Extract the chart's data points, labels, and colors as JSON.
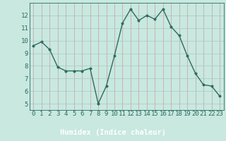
{
  "x": [
    0,
    1,
    2,
    3,
    4,
    5,
    6,
    7,
    8,
    9,
    10,
    11,
    12,
    13,
    14,
    15,
    16,
    17,
    18,
    19,
    20,
    21,
    22,
    23
  ],
  "y": [
    9.6,
    9.9,
    9.3,
    7.9,
    7.6,
    7.6,
    7.6,
    7.8,
    5.0,
    6.4,
    8.8,
    11.4,
    12.5,
    11.6,
    12.0,
    11.7,
    12.5,
    11.1,
    10.4,
    8.8,
    7.4,
    6.5,
    6.4,
    5.6
  ],
  "line_color": "#2D6B5E",
  "marker_color": "#2D6B5E",
  "bg_color": "#C8E8E0",
  "plot_bg_color": "#C8E8E0",
  "footer_bg_color": "#5A8A80",
  "grid_v_color": "#C8A0A0",
  "grid_h_color": "#A8C8C0",
  "axis_label_color": "#2D6B5E",
  "xlabel": "Humidex (Indice chaleur)",
  "xlabel_color": "#FFFFFF",
  "ylim": [
    4.5,
    13.0
  ],
  "xlim": [
    -0.5,
    23.5
  ],
  "yticks": [
    5,
    6,
    7,
    8,
    9,
    10,
    11,
    12
  ],
  "xticks": [
    0,
    1,
    2,
    3,
    4,
    5,
    6,
    7,
    8,
    9,
    10,
    11,
    12,
    13,
    14,
    15,
    16,
    17,
    18,
    19,
    20,
    21,
    22,
    23
  ],
  "xlabel_fontsize": 7.5,
  "tick_fontsize": 6.5,
  "marker_size": 2.5,
  "line_width": 1.0
}
